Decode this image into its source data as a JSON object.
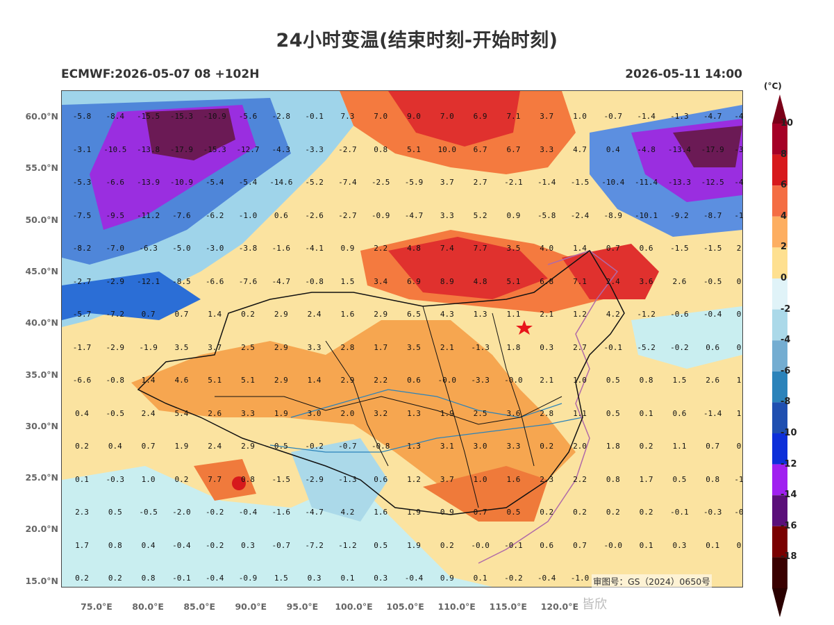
{
  "title": "24小时变温(结束时刻-开始时刻)",
  "model_info": "ECMWF:2026-05-07 08 +102H",
  "valid_time": "2026-05-11 14:00",
  "approval_number": "审图号：GS（2024）0650号",
  "watermark": "皆欣",
  "unit_label": "(°C)",
  "lat_labels": [
    "60.0°N",
    "55.0°N",
    "50.0°N",
    "45.0°N",
    "40.0°N",
    "35.0°N",
    "30.0°N",
    "25.0°N",
    "20.0°N",
    "15.0°N"
  ],
  "lon_labels": [
    "75.0°E",
    "80.0°E",
    "85.0°E",
    "90.0°E",
    "95.0°E",
    "100.0°E",
    "105.0°E",
    "110.0°E",
    "115.0°E",
    "120.0°E"
  ],
  "colorbar": {
    "levels": [
      "10",
      "8",
      "6",
      "4",
      "2",
      "0",
      "-2",
      "-4",
      "-6",
      "-8",
      "-10",
      "-12",
      "-14",
      "-16",
      "-18"
    ],
    "colors": [
      "#a50026",
      "#d7191c",
      "#f46d43",
      "#fdae61",
      "#fee090",
      "#e0f3f8",
      "#abd9e9",
      "#74add1",
      "#2b83ba",
      "#1f4fb0",
      "#0d2fd9",
      "#a020f0",
      "#5b0f7a",
      "#7a0000",
      "#3a0000"
    ]
  },
  "grid_values": [
    [
      "-5.8",
      "-8.4",
      "-15.5",
      "-15.3",
      "-10.9",
      "-5.6",
      "-2.8",
      "-0.1",
      "7.3",
      "7.0",
      "9.0",
      "7.0",
      "6.9",
      "7.1",
      "3.7",
      "1.0",
      "-0.7",
      "-1.4",
      "-1.3",
      "-4.7",
      "-4"
    ],
    [
      "-3.1",
      "-10.5",
      "-13.8",
      "-17.9",
      "-15.3",
      "-12.7",
      "-4.3",
      "-3.3",
      "-2.7",
      "0.8",
      "5.1",
      "10.0",
      "6.7",
      "6.7",
      "3.3",
      "4.7",
      "0.4",
      "-4.8",
      "-13.4",
      "-17.9",
      "-3"
    ],
    [
      "-5.3",
      "-6.6",
      "-13.9",
      "-10.9",
      "-5.4",
      "-5.4",
      "-14.6",
      "-5.2",
      "-7.4",
      "-2.5",
      "-5.9",
      "3.7",
      "2.7",
      "-2.1",
      "-1.4",
      "-1.5",
      "-10.4",
      "-11.4",
      "-13.3",
      "-12.5",
      "-4"
    ],
    [
      "-7.5",
      "-9.5",
      "-11.2",
      "-7.6",
      "-6.2",
      "-1.0",
      "0.6",
      "-2.6",
      "-2.7",
      "-0.9",
      "-4.7",
      "3.3",
      "5.2",
      "0.9",
      "-5.8",
      "-2.4",
      "-8.9",
      "-10.1",
      "-9.2",
      "-8.7",
      "-1"
    ],
    [
      "-8.2",
      "-7.0",
      "-6.3",
      "-5.0",
      "-3.0",
      "-3.8",
      "-1.6",
      "-4.1",
      "0.9",
      "2.2",
      "4.8",
      "7.4",
      "7.7",
      "3.5",
      "4.0",
      "1.4",
      "0.7",
      "0.6",
      "-1.5",
      "-1.5",
      "2"
    ],
    [
      "-2.7",
      "-2.9",
      "-12.1",
      "-8.5",
      "-6.6",
      "-7.6",
      "-4.7",
      "-0.8",
      "1.5",
      "3.4",
      "6.9",
      "8.9",
      "4.8",
      "5.1",
      "6.8",
      "7.1",
      "2.4",
      "3.6",
      "2.6",
      "-0.5",
      "0"
    ],
    [
      "-5.7",
      "-7.2",
      "0.7",
      "0.7",
      "1.4",
      "0.2",
      "2.9",
      "2.4",
      "1.6",
      "2.9",
      "6.5",
      "4.3",
      "1.3",
      "1.1",
      "2.1",
      "1.2",
      "4.2",
      "-1.2",
      "-0.6",
      "-0.4",
      "0"
    ],
    [
      "-1.7",
      "-2.9",
      "-1.9",
      "3.5",
      "3.7",
      "2.5",
      "2.9",
      "3.3",
      "2.8",
      "1.7",
      "3.5",
      "2.1",
      "-1.3",
      "1.8",
      "0.3",
      "2.7",
      "-0.1",
      "-5.2",
      "-0.2",
      "0.6",
      "0"
    ],
    [
      "-6.6",
      "-0.8",
      "1.4",
      "4.6",
      "5.1",
      "5.1",
      "2.9",
      "1.4",
      "2.9",
      "2.2",
      "0.6",
      "-0.0",
      "-3.3",
      "-0.0",
      "2.1",
      "1.0",
      "0.5",
      "0.8",
      "1.5",
      "2.6",
      "1"
    ],
    [
      "0.4",
      "-0.5",
      "2.4",
      "5.4",
      "2.6",
      "3.3",
      "1.9",
      "3.0",
      "2.0",
      "3.2",
      "1.3",
      "1.9",
      "2.5",
      "3.6",
      "2.8",
      "1.1",
      "0.5",
      "0.1",
      "0.6",
      "-1.4",
      "1"
    ],
    [
      "0.2",
      "0.4",
      "0.7",
      "1.9",
      "2.4",
      "2.9",
      "0.5",
      "-0.2",
      "-0.7",
      "-0.8",
      "1.3",
      "3.1",
      "3.0",
      "3.3",
      "0.2",
      "2.0",
      "1.8",
      "0.2",
      "1.1",
      "0.7",
      "0"
    ],
    [
      "0.1",
      "-0.3",
      "1.0",
      "0.2",
      "7.7",
      "0.8",
      "-1.5",
      "-2.9",
      "-1.3",
      "0.6",
      "1.2",
      "3.7",
      "1.0",
      "1.6",
      "2.3",
      "2.2",
      "0.8",
      "1.7",
      "0.5",
      "0.8",
      "-1"
    ],
    [
      "2.3",
      "0.5",
      "-0.5",
      "-2.0",
      "-0.2",
      "-0.4",
      "-1.6",
      "-4.7",
      "4.2",
      "1.6",
      "1.9",
      "0.9",
      "0.7",
      "0.5",
      "0.2",
      "0.2",
      "0.2",
      "0.2",
      "-0.1",
      "-0.3",
      "-0"
    ],
    [
      "1.7",
      "0.8",
      "0.4",
      "-0.4",
      "-0.2",
      "0.3",
      "-0.7",
      "-7.2",
      "-1.2",
      "0.5",
      "1.9",
      "0.2",
      "-0.0",
      "-0.1",
      "0.6",
      "0.7",
      "-0.0",
      "0.1",
      "0.3",
      "0.1",
      "0"
    ],
    [
      "0.2",
      "0.2",
      "0.8",
      "-0.1",
      "-0.4",
      "-0.9",
      "1.5",
      "0.3",
      "0.1",
      "0.3",
      "-0.4",
      "0.9",
      "0.1",
      "-0.2",
      "-0.4",
      "-1.0",
      "",
      "",
      "",
      "",
      ""
    ]
  ]
}
